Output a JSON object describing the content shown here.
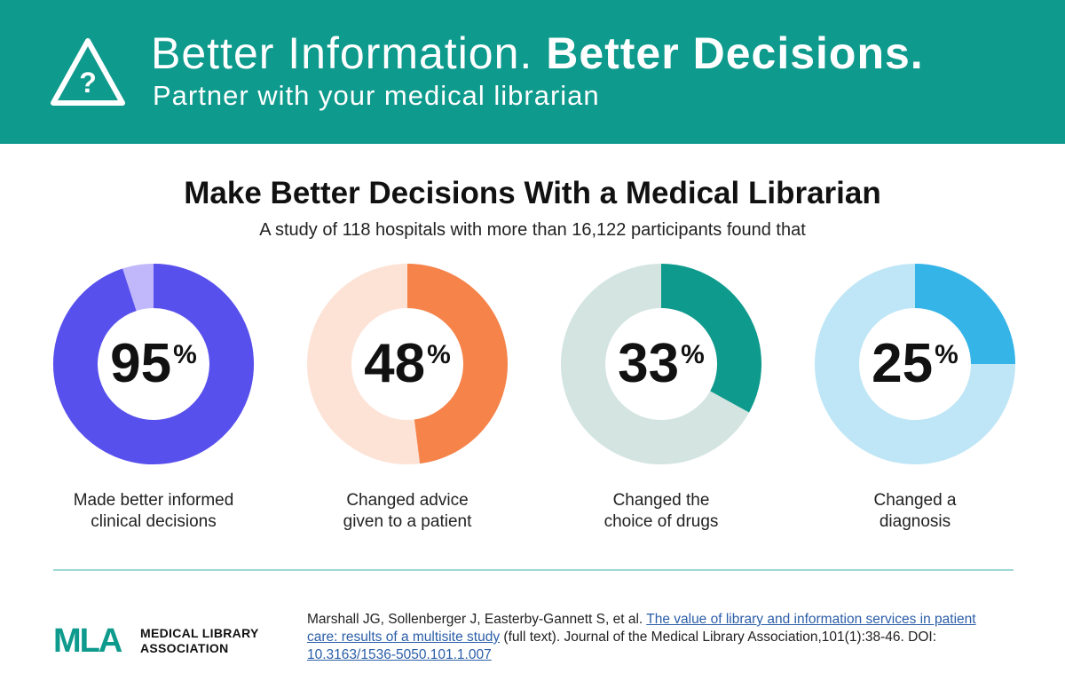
{
  "banner": {
    "title_regular": "Better Information.",
    "title_bold": "Better Decisions.",
    "subtitle": "Partner with your medical librarian",
    "icon": "warning-question-icon",
    "color": "#0e9a8c"
  },
  "section": {
    "heading": "Make Better Decisions With a Medical Librarian",
    "subheading": "A study of 118 hospitals with more than 16,122 participants found that"
  },
  "chart_data": {
    "type": "pie",
    "title": "Make Better Decisions With a Medical Librarian",
    "subtitle": "A study of 118 hospitals with more than 16,122 participants found that",
    "unit": "%",
    "series": [
      {
        "name": "Made better informed clinical decisions",
        "label_line1": "Made better informed",
        "label_line2": "clinical decisions",
        "value": 95,
        "color": "#5850ec",
        "track_color": "#c0b8fb"
      },
      {
        "name": "Changed advice given to a patient",
        "label_line1": "Changed advice",
        "label_line2": "given to a patient",
        "value": 48,
        "color": "#f5834a",
        "track_color": "#fde3d6"
      },
      {
        "name": "Changed the choice of drugs",
        "label_line1": "Changed the",
        "label_line2": "choice of drugs",
        "value": 33,
        "color": "#0e9a8c",
        "track_color": "#d3e4e1"
      },
      {
        "name": "Changed a diagnosis",
        "label_line1": "Changed a",
        "label_line2": "diagnosis",
        "value": 25,
        "color": "#35b4e8",
        "track_color": "#bfe6f6"
      }
    ]
  },
  "footer": {
    "logo_mark": "MLA",
    "logo_line1": "MEDICAL LIBRARY",
    "logo_line2": "ASSOCIATION",
    "logo_color": "#0e9a8c",
    "citation_authors": "Marshall JG, Sollenberger J, Easterby-Gannett S, et al.",
    "citation_link_text": "The value of library and information services in patient care: results of a multisite study",
    "citation_after_link": "(full text). Journal of the Medical Library Association,101(1):38-46. DOI:",
    "citation_doi": "10.3163/1536-5050.101.1.007"
  }
}
